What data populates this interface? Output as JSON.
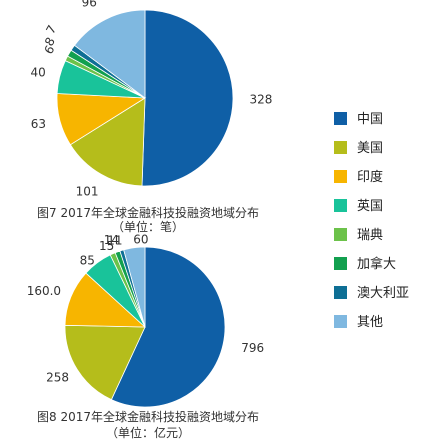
{
  "chart_data": [
    {
      "type": "pie",
      "title": "图7 2017年全球金融科技投融资地域分布",
      "subtitle": "（单位：笔）",
      "categories": [
        "中国",
        "美国",
        "印度",
        "英国",
        "瑞典",
        "加拿大",
        "澳大利亚",
        "其他"
      ],
      "values": [
        328,
        101,
        63,
        40,
        6,
        8,
        7,
        96
      ],
      "value_labels": [
        "328",
        "101",
        "63",
        "40",
        "6",
        "8",
        "7",
        "96"
      ]
    },
    {
      "type": "pie",
      "title": "图8 2017年全球金融科技投融资地域分布",
      "subtitle": "（单位：亿元）",
      "categories": [
        "中国",
        "美国",
        "印度",
        "英国",
        "瑞典",
        "加拿大",
        "澳大利亚",
        "其他"
      ],
      "values": [
        796,
        258,
        160.0,
        85,
        15,
        14,
        11,
        60
      ],
      "value_labels": [
        "796",
        "258",
        "160.0",
        "85",
        "15",
        "14",
        "11",
        "60"
      ]
    }
  ],
  "legend": {
    "items": [
      {
        "label": "中国",
        "color": "#0f5fa6"
      },
      {
        "label": "美国",
        "color": "#b5bd1b"
      },
      {
        "label": "印度",
        "color": "#f7b500"
      },
      {
        "label": "英国",
        "color": "#19c39a"
      },
      {
        "label": "瑞典",
        "color": "#6cc24a"
      },
      {
        "label": "加拿大",
        "color": "#12a04f"
      },
      {
        "label": "澳大利亚",
        "color": "#0e6f95"
      },
      {
        "label": "其他",
        "color": "#7fb8e0"
      }
    ]
  }
}
